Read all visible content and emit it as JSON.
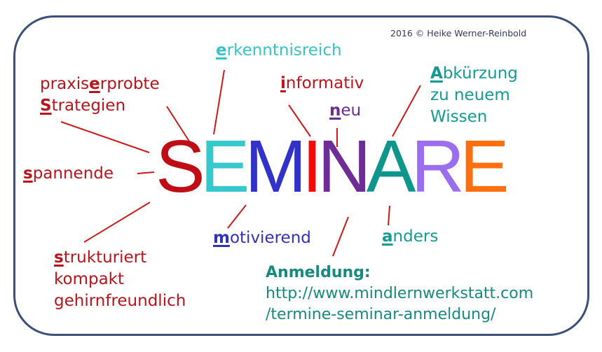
{
  "copyright": "2016 © Heike  Werner-Reinbold",
  "title_letters": [
    {
      "char": "S",
      "color": "#c00c14"
    },
    {
      "char": "E",
      "color": "#36c8cc"
    },
    {
      "char": "M",
      "color": "#3232c8"
    },
    {
      "char": "I",
      "color": "#f50a0a"
    },
    {
      "char": "N",
      "color": "#6e2d96"
    },
    {
      "char": "A",
      "color": "#0f968c"
    },
    {
      "char": "R",
      "color": "#9b6ef0"
    },
    {
      "char": "E",
      "color": "#ff6e0f"
    }
  ],
  "keywords": {
    "praxis": {
      "pre": "praxis",
      "hl": "e",
      "post": "rprobte"
    },
    "strategien": {
      "hl": "S",
      "post": "trategien"
    },
    "erkenntnis": {
      "hl": "e",
      "post": "rkenntnisreich"
    },
    "informativ": {
      "hl": "i",
      "post": "nformativ"
    },
    "neu": {
      "hl": "n",
      "post": "eu"
    },
    "abkuerzung": {
      "hl": "A",
      "post": "bkürzung",
      "line2": "zu neuem",
      "line3": "Wissen"
    },
    "spannende": {
      "hl": "s",
      "post": "pannende"
    },
    "strukturiert": {
      "hl": "s",
      "post": "trukturiert",
      "line2": "kompakt",
      "line3": "gehirnfreundlich"
    },
    "motivierend": {
      "hl": "m",
      "post": "otivierend"
    },
    "anders": {
      "hl": "a",
      "post": "nders"
    }
  },
  "registration": {
    "heading": "Anmeldung:",
    "url_line1": "http://www.mindlernwerkstatt.com",
    "url_line2": "/termine-seminar-anmeldung/"
  },
  "colors": {
    "frame": "#3b4f78",
    "connector": "#cc1a1a"
  }
}
